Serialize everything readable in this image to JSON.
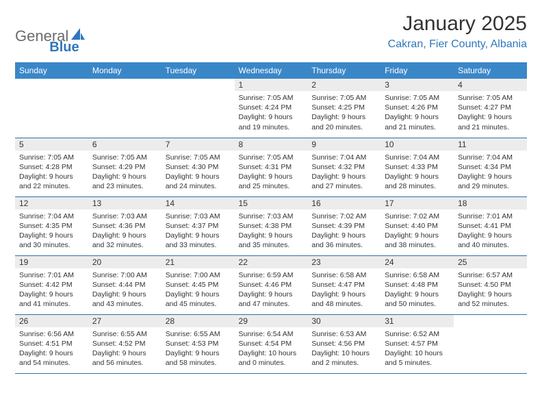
{
  "brand": {
    "name_a": "General",
    "name_b": "Blue"
  },
  "title": "January 2025",
  "location": "Cakran, Fier County, Albania",
  "colors": {
    "header_bg": "#3a87c8",
    "header_text": "#ffffff",
    "row_divider": "#2f6fa8",
    "daynum_bg": "#ececec",
    "text": "#333333",
    "brand_grey": "#6b6b6b",
    "brand_blue": "#2f77bb",
    "page_bg": "#ffffff"
  },
  "typography": {
    "title_size_pt": 22,
    "location_size_pt": 12,
    "weekday_size_pt": 9,
    "daynum_size_pt": 9,
    "body_size_pt": 8
  },
  "weekdays": [
    "Sunday",
    "Monday",
    "Tuesday",
    "Wednesday",
    "Thursday",
    "Friday",
    "Saturday"
  ],
  "weeks": [
    [
      {
        "n": "",
        "sunrise": "",
        "sunset": "",
        "daylight": ""
      },
      {
        "n": "",
        "sunrise": "",
        "sunset": "",
        "daylight": ""
      },
      {
        "n": "",
        "sunrise": "",
        "sunset": "",
        "daylight": ""
      },
      {
        "n": "1",
        "sunrise": "Sunrise: 7:05 AM",
        "sunset": "Sunset: 4:24 PM",
        "daylight": "Daylight: 9 hours and 19 minutes."
      },
      {
        "n": "2",
        "sunrise": "Sunrise: 7:05 AM",
        "sunset": "Sunset: 4:25 PM",
        "daylight": "Daylight: 9 hours and 20 minutes."
      },
      {
        "n": "3",
        "sunrise": "Sunrise: 7:05 AM",
        "sunset": "Sunset: 4:26 PM",
        "daylight": "Daylight: 9 hours and 21 minutes."
      },
      {
        "n": "4",
        "sunrise": "Sunrise: 7:05 AM",
        "sunset": "Sunset: 4:27 PM",
        "daylight": "Daylight: 9 hours and 21 minutes."
      }
    ],
    [
      {
        "n": "5",
        "sunrise": "Sunrise: 7:05 AM",
        "sunset": "Sunset: 4:28 PM",
        "daylight": "Daylight: 9 hours and 22 minutes."
      },
      {
        "n": "6",
        "sunrise": "Sunrise: 7:05 AM",
        "sunset": "Sunset: 4:29 PM",
        "daylight": "Daylight: 9 hours and 23 minutes."
      },
      {
        "n": "7",
        "sunrise": "Sunrise: 7:05 AM",
        "sunset": "Sunset: 4:30 PM",
        "daylight": "Daylight: 9 hours and 24 minutes."
      },
      {
        "n": "8",
        "sunrise": "Sunrise: 7:05 AM",
        "sunset": "Sunset: 4:31 PM",
        "daylight": "Daylight: 9 hours and 25 minutes."
      },
      {
        "n": "9",
        "sunrise": "Sunrise: 7:04 AM",
        "sunset": "Sunset: 4:32 PM",
        "daylight": "Daylight: 9 hours and 27 minutes."
      },
      {
        "n": "10",
        "sunrise": "Sunrise: 7:04 AM",
        "sunset": "Sunset: 4:33 PM",
        "daylight": "Daylight: 9 hours and 28 minutes."
      },
      {
        "n": "11",
        "sunrise": "Sunrise: 7:04 AM",
        "sunset": "Sunset: 4:34 PM",
        "daylight": "Daylight: 9 hours and 29 minutes."
      }
    ],
    [
      {
        "n": "12",
        "sunrise": "Sunrise: 7:04 AM",
        "sunset": "Sunset: 4:35 PM",
        "daylight": "Daylight: 9 hours and 30 minutes."
      },
      {
        "n": "13",
        "sunrise": "Sunrise: 7:03 AM",
        "sunset": "Sunset: 4:36 PM",
        "daylight": "Daylight: 9 hours and 32 minutes."
      },
      {
        "n": "14",
        "sunrise": "Sunrise: 7:03 AM",
        "sunset": "Sunset: 4:37 PM",
        "daylight": "Daylight: 9 hours and 33 minutes."
      },
      {
        "n": "15",
        "sunrise": "Sunrise: 7:03 AM",
        "sunset": "Sunset: 4:38 PM",
        "daylight": "Daylight: 9 hours and 35 minutes."
      },
      {
        "n": "16",
        "sunrise": "Sunrise: 7:02 AM",
        "sunset": "Sunset: 4:39 PM",
        "daylight": "Daylight: 9 hours and 36 minutes."
      },
      {
        "n": "17",
        "sunrise": "Sunrise: 7:02 AM",
        "sunset": "Sunset: 4:40 PM",
        "daylight": "Daylight: 9 hours and 38 minutes."
      },
      {
        "n": "18",
        "sunrise": "Sunrise: 7:01 AM",
        "sunset": "Sunset: 4:41 PM",
        "daylight": "Daylight: 9 hours and 40 minutes."
      }
    ],
    [
      {
        "n": "19",
        "sunrise": "Sunrise: 7:01 AM",
        "sunset": "Sunset: 4:42 PM",
        "daylight": "Daylight: 9 hours and 41 minutes."
      },
      {
        "n": "20",
        "sunrise": "Sunrise: 7:00 AM",
        "sunset": "Sunset: 4:44 PM",
        "daylight": "Daylight: 9 hours and 43 minutes."
      },
      {
        "n": "21",
        "sunrise": "Sunrise: 7:00 AM",
        "sunset": "Sunset: 4:45 PM",
        "daylight": "Daylight: 9 hours and 45 minutes."
      },
      {
        "n": "22",
        "sunrise": "Sunrise: 6:59 AM",
        "sunset": "Sunset: 4:46 PM",
        "daylight": "Daylight: 9 hours and 47 minutes."
      },
      {
        "n": "23",
        "sunrise": "Sunrise: 6:58 AM",
        "sunset": "Sunset: 4:47 PM",
        "daylight": "Daylight: 9 hours and 48 minutes."
      },
      {
        "n": "24",
        "sunrise": "Sunrise: 6:58 AM",
        "sunset": "Sunset: 4:48 PM",
        "daylight": "Daylight: 9 hours and 50 minutes."
      },
      {
        "n": "25",
        "sunrise": "Sunrise: 6:57 AM",
        "sunset": "Sunset: 4:50 PM",
        "daylight": "Daylight: 9 hours and 52 minutes."
      }
    ],
    [
      {
        "n": "26",
        "sunrise": "Sunrise: 6:56 AM",
        "sunset": "Sunset: 4:51 PM",
        "daylight": "Daylight: 9 hours and 54 minutes."
      },
      {
        "n": "27",
        "sunrise": "Sunrise: 6:55 AM",
        "sunset": "Sunset: 4:52 PM",
        "daylight": "Daylight: 9 hours and 56 minutes."
      },
      {
        "n": "28",
        "sunrise": "Sunrise: 6:55 AM",
        "sunset": "Sunset: 4:53 PM",
        "daylight": "Daylight: 9 hours and 58 minutes."
      },
      {
        "n": "29",
        "sunrise": "Sunrise: 6:54 AM",
        "sunset": "Sunset: 4:54 PM",
        "daylight": "Daylight: 10 hours and 0 minutes."
      },
      {
        "n": "30",
        "sunrise": "Sunrise: 6:53 AM",
        "sunset": "Sunset: 4:56 PM",
        "daylight": "Daylight: 10 hours and 2 minutes."
      },
      {
        "n": "31",
        "sunrise": "Sunrise: 6:52 AM",
        "sunset": "Sunset: 4:57 PM",
        "daylight": "Daylight: 10 hours and 5 minutes."
      },
      {
        "n": "",
        "sunrise": "",
        "sunset": "",
        "daylight": ""
      }
    ]
  ]
}
